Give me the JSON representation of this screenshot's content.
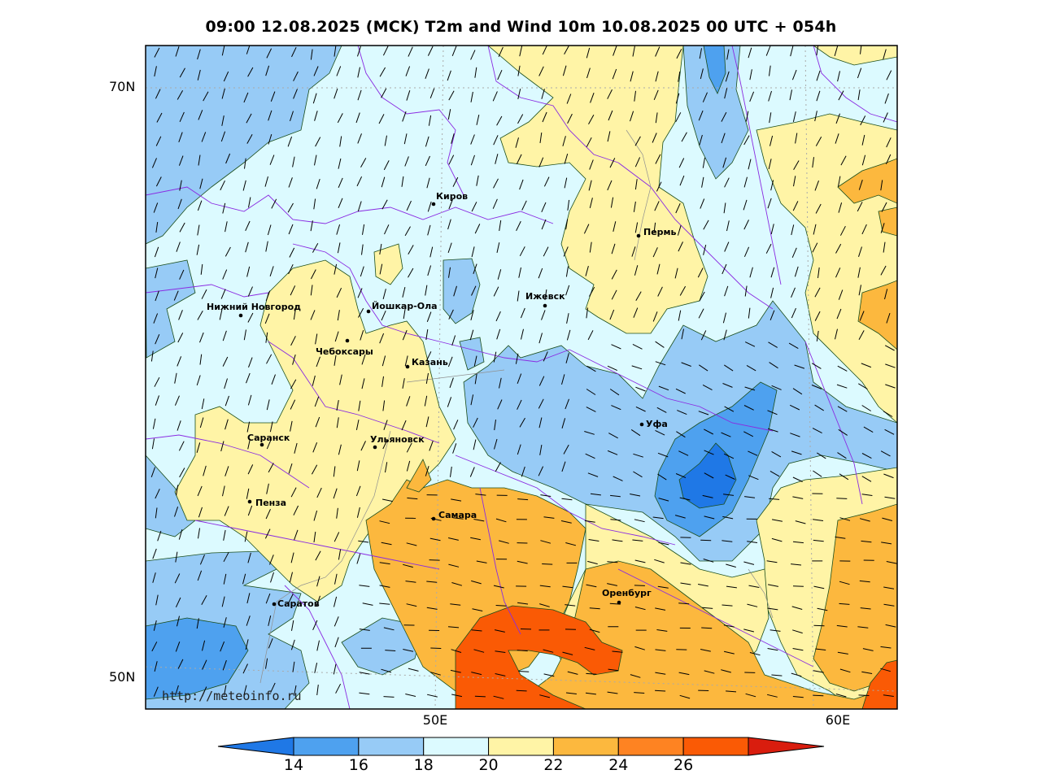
{
  "title": "09:00 12.08.2025 (MCK) T2m and Wind 10m 10.08.2025 00 UTC + 054h",
  "watermark": "http://meteoinfo.ru",
  "lat_labels": [
    "70N",
    "50N"
  ],
  "lon_labels": [
    "50E",
    "60E"
  ],
  "colorbar": {
    "ticks": [
      "14",
      "16",
      "18",
      "20",
      "22",
      "24",
      "26"
    ],
    "colors": [
      "#1f78e6",
      "#4ea1ef",
      "#97cbf6",
      "#dcfaff",
      "#fff4a6",
      "#fcb83e",
      "#fe8322",
      "#fa5a05",
      "#d91d0e"
    ]
  },
  "cities": [
    {
      "name": "Киров"
    },
    {
      "name": "Пермь"
    },
    {
      "name": "Ижевск"
    },
    {
      "name": "Нижний Новгород"
    },
    {
      "name": "Йошкар-Ола"
    },
    {
      "name": "Чебоксары"
    },
    {
      "name": "Казань"
    },
    {
      "name": "Уфа"
    },
    {
      "name": "Саранск"
    },
    {
      "name": "Ульяновск"
    },
    {
      "name": "Пенза"
    },
    {
      "name": "Самара"
    },
    {
      "name": "Оренбург"
    },
    {
      "name": "Саратов"
    }
  ]
}
